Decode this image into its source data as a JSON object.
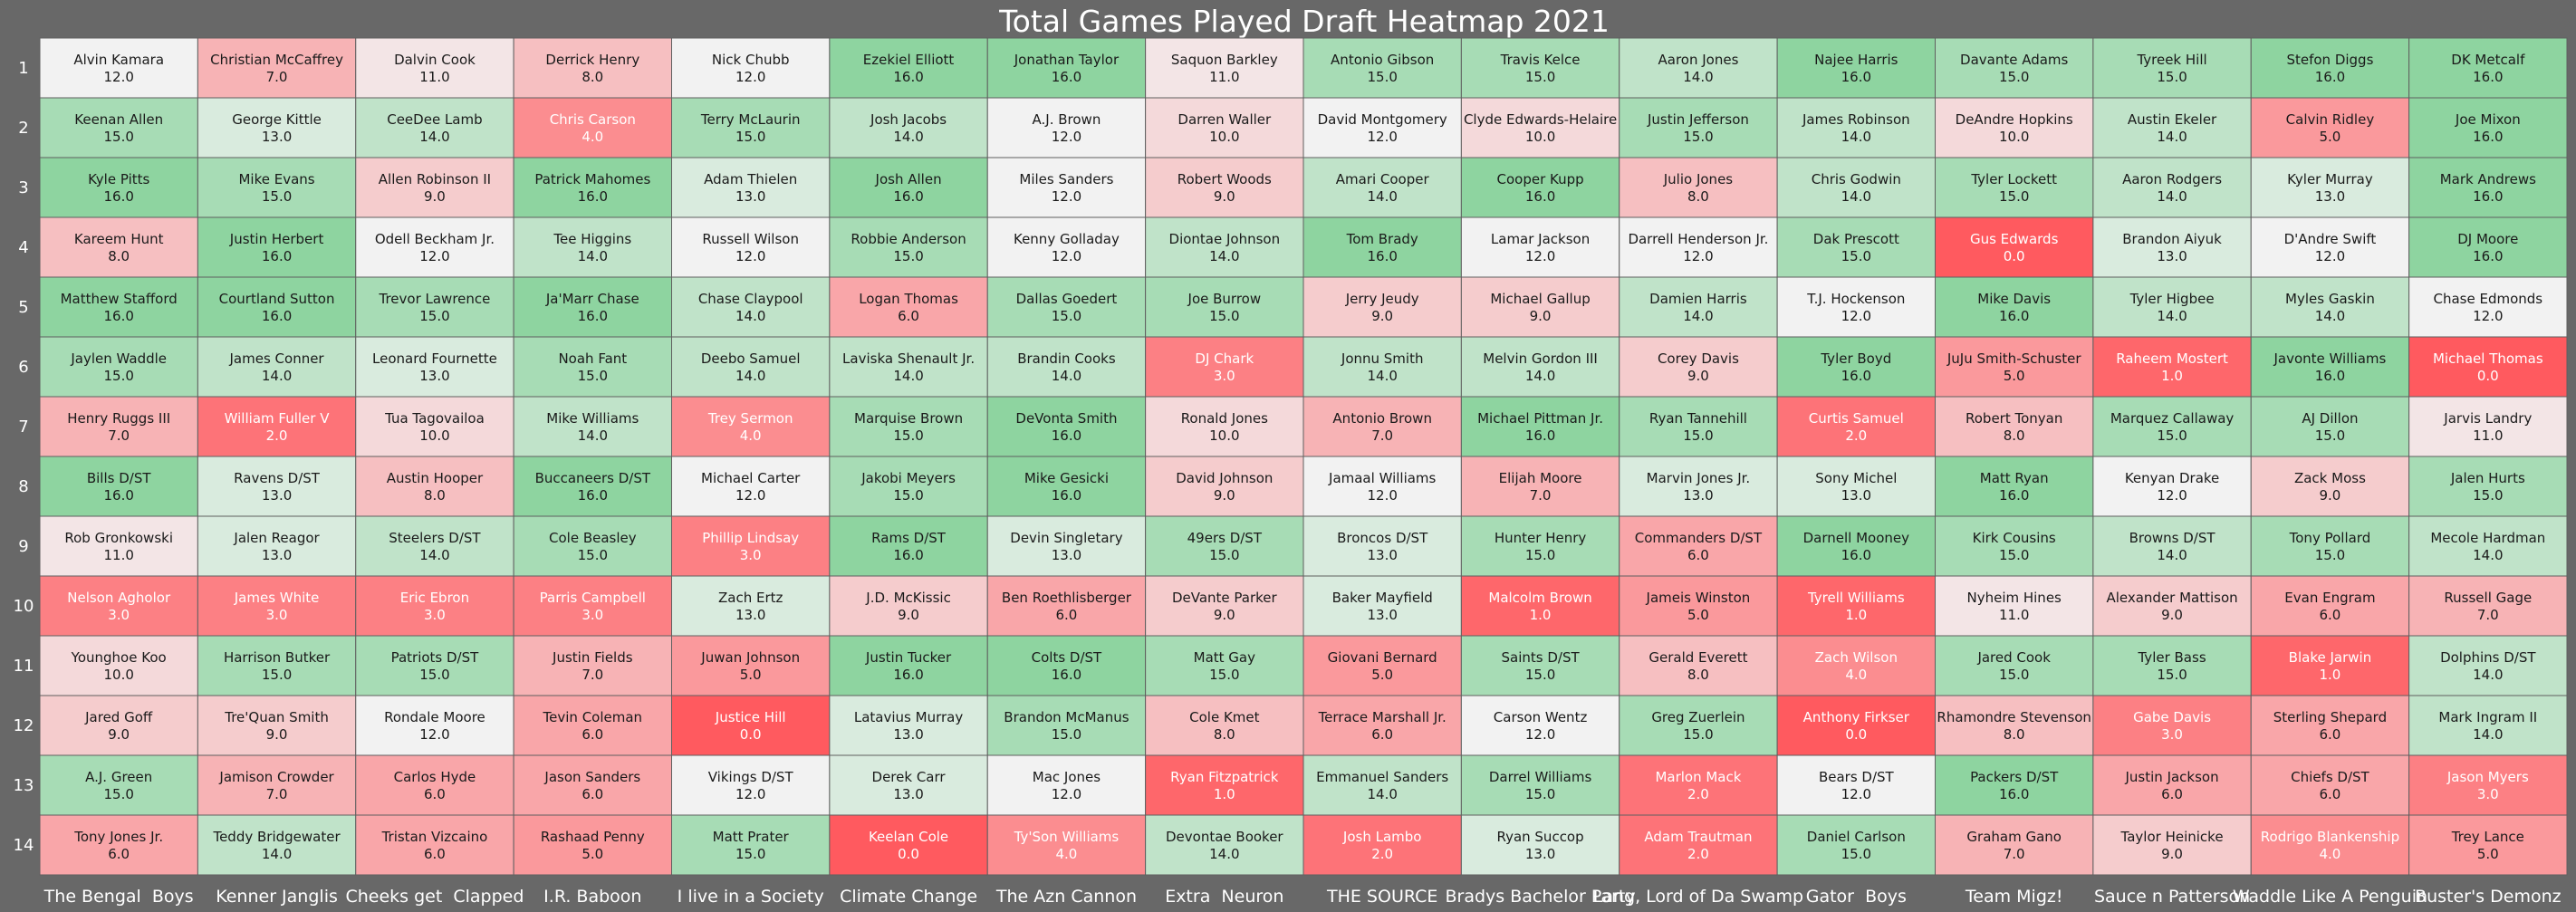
{
  "chart_data": {
    "type": "heatmap",
    "title": "Total Games Played Draft Heatmap 2021",
    "row_labels": [
      "1",
      "2",
      "3",
      "4",
      "5",
      "6",
      "7",
      "8",
      "9",
      "10",
      "11",
      "12",
      "13",
      "14"
    ],
    "columns": [
      "The Bengal  Boys",
      "Kenner Janglis",
      "Cheeks get  Clapped",
      "I.R. Baboon",
      "I live in a Society",
      "Climate Change",
      "The Azn Cannon",
      "Extra  Neuron",
      "THE SOURCE",
      "Bradys Bachelor Party",
      "Lang, Lord of Da Swamp",
      "Gator  Boys",
      "Team Migz!",
      "Sauce n Patterson",
      "Waddle Like A Penguin",
      "Buster's Demonz"
    ],
    "value_range": [
      0,
      16
    ],
    "colors": {
      "low": "#ff5a5f",
      "mid": "#f2f2f2",
      "high": "#8ed4a0",
      "background": "#686868",
      "grid": "#5f5f5f",
      "text_dark": "#1a1a1a",
      "text_light": "#ffffff",
      "title": "#ffffff"
    },
    "cells": [
      [
        {
          "name": "Alvin Kamara",
          "value": "12.0"
        },
        {
          "name": "Christian McCaffrey",
          "value": "7.0"
        },
        {
          "name": "Dalvin Cook",
          "value": "11.0"
        },
        {
          "name": "Derrick Henry",
          "value": "8.0"
        },
        {
          "name": "Nick Chubb",
          "value": "12.0"
        },
        {
          "name": "Ezekiel Elliott",
          "value": "16.0"
        },
        {
          "name": "Jonathan Taylor",
          "value": "16.0"
        },
        {
          "name": "Saquon Barkley",
          "value": "11.0"
        },
        {
          "name": "Antonio Gibson",
          "value": "15.0"
        },
        {
          "name": "Travis Kelce",
          "value": "15.0"
        },
        {
          "name": "Aaron Jones",
          "value": "14.0"
        },
        {
          "name": "Najee Harris",
          "value": "16.0"
        },
        {
          "name": "Davante Adams",
          "value": "15.0"
        },
        {
          "name": "Tyreek Hill",
          "value": "15.0"
        },
        {
          "name": "Stefon Diggs",
          "value": "16.0"
        },
        {
          "name": "DK Metcalf",
          "value": "16.0"
        }
      ],
      [
        {
          "name": "Keenan Allen",
          "value": "15.0"
        },
        {
          "name": "George Kittle",
          "value": "13.0"
        },
        {
          "name": "CeeDee Lamb",
          "value": "14.0"
        },
        {
          "name": "Chris Carson",
          "value": "4.0"
        },
        {
          "name": "Terry McLaurin",
          "value": "15.0"
        },
        {
          "name": "Josh Jacobs",
          "value": "14.0"
        },
        {
          "name": "A.J. Brown",
          "value": "12.0"
        },
        {
          "name": "Darren Waller",
          "value": "10.0"
        },
        {
          "name": "David Montgomery",
          "value": "12.0"
        },
        {
          "name": "Clyde Edwards-Helaire",
          "value": "10.0"
        },
        {
          "name": "Justin Jefferson",
          "value": "15.0"
        },
        {
          "name": "James Robinson",
          "value": "14.0"
        },
        {
          "name": "DeAndre Hopkins",
          "value": "10.0"
        },
        {
          "name": "Austin Ekeler",
          "value": "14.0"
        },
        {
          "name": "Calvin Ridley",
          "value": "5.0"
        },
        {
          "name": "Joe Mixon",
          "value": "16.0"
        }
      ],
      [
        {
          "name": "Kyle Pitts",
          "value": "16.0"
        },
        {
          "name": "Mike Evans",
          "value": "15.0"
        },
        {
          "name": "Allen Robinson II",
          "value": "9.0"
        },
        {
          "name": "Patrick Mahomes",
          "value": "16.0"
        },
        {
          "name": "Adam Thielen",
          "value": "13.0"
        },
        {
          "name": "Josh Allen",
          "value": "16.0"
        },
        {
          "name": "Miles Sanders",
          "value": "12.0"
        },
        {
          "name": "Robert Woods",
          "value": "9.0"
        },
        {
          "name": "Amari Cooper",
          "value": "14.0"
        },
        {
          "name": "Cooper Kupp",
          "value": "16.0"
        },
        {
          "name": "Julio Jones",
          "value": "8.0"
        },
        {
          "name": "Chris Godwin",
          "value": "14.0"
        },
        {
          "name": "Tyler Lockett",
          "value": "15.0"
        },
        {
          "name": "Aaron Rodgers",
          "value": "14.0"
        },
        {
          "name": "Kyler Murray",
          "value": "13.0"
        },
        {
          "name": "Mark Andrews",
          "value": "16.0"
        }
      ],
      [
        {
          "name": "Kareem Hunt",
          "value": "8.0"
        },
        {
          "name": "Justin Herbert",
          "value": "16.0"
        },
        {
          "name": "Odell Beckham Jr.",
          "value": "12.0"
        },
        {
          "name": "Tee Higgins",
          "value": "14.0"
        },
        {
          "name": "Russell Wilson",
          "value": "12.0"
        },
        {
          "name": "Robbie Anderson",
          "value": "15.0"
        },
        {
          "name": "Kenny Golladay",
          "value": "12.0"
        },
        {
          "name": "Diontae Johnson",
          "value": "14.0"
        },
        {
          "name": "Tom Brady",
          "value": "16.0"
        },
        {
          "name": "Lamar Jackson",
          "value": "12.0"
        },
        {
          "name": "Darrell Henderson Jr.",
          "value": "12.0"
        },
        {
          "name": "Dak Prescott",
          "value": "15.0"
        },
        {
          "name": "Gus Edwards",
          "value": "0.0"
        },
        {
          "name": "Brandon Aiyuk",
          "value": "13.0"
        },
        {
          "name": "D'Andre Swift",
          "value": "12.0"
        },
        {
          "name": "DJ Moore",
          "value": "16.0"
        }
      ],
      [
        {
          "name": "Matthew Stafford",
          "value": "16.0"
        },
        {
          "name": "Courtland Sutton",
          "value": "16.0"
        },
        {
          "name": "Trevor Lawrence",
          "value": "15.0"
        },
        {
          "name": "Ja'Marr Chase",
          "value": "16.0"
        },
        {
          "name": "Chase Claypool",
          "value": "14.0"
        },
        {
          "name": "Logan Thomas",
          "value": "6.0"
        },
        {
          "name": "Dallas Goedert",
          "value": "15.0"
        },
        {
          "name": "Joe Burrow",
          "value": "15.0"
        },
        {
          "name": "Jerry Jeudy",
          "value": "9.0"
        },
        {
          "name": "Michael Gallup",
          "value": "9.0"
        },
        {
          "name": "Damien Harris",
          "value": "14.0"
        },
        {
          "name": "T.J. Hockenson",
          "value": "12.0"
        },
        {
          "name": "Mike Davis",
          "value": "16.0"
        },
        {
          "name": "Tyler Higbee",
          "value": "14.0"
        },
        {
          "name": "Myles Gaskin",
          "value": "14.0"
        },
        {
          "name": "Chase Edmonds",
          "value": "12.0"
        }
      ],
      [
        {
          "name": "Jaylen Waddle",
          "value": "15.0"
        },
        {
          "name": "James Conner",
          "value": "14.0"
        },
        {
          "name": "Leonard Fournette",
          "value": "13.0"
        },
        {
          "name": "Noah Fant",
          "value": "15.0"
        },
        {
          "name": "Deebo Samuel",
          "value": "14.0"
        },
        {
          "name": "Laviska Shenault Jr.",
          "value": "14.0"
        },
        {
          "name": "Brandin Cooks",
          "value": "14.0"
        },
        {
          "name": "DJ Chark",
          "value": "3.0"
        },
        {
          "name": "Jonnu Smith",
          "value": "14.0"
        },
        {
          "name": "Melvin Gordon III",
          "value": "14.0"
        },
        {
          "name": "Corey Davis",
          "value": "9.0"
        },
        {
          "name": "Tyler Boyd",
          "value": "16.0"
        },
        {
          "name": "JuJu Smith-Schuster",
          "value": "5.0"
        },
        {
          "name": "Raheem Mostert",
          "value": "1.0"
        },
        {
          "name": "Javonte Williams",
          "value": "16.0"
        },
        {
          "name": "Michael Thomas",
          "value": "0.0"
        }
      ],
      [
        {
          "name": "Henry Ruggs III",
          "value": "7.0"
        },
        {
          "name": "William Fuller V",
          "value": "2.0"
        },
        {
          "name": "Tua Tagovailoa",
          "value": "10.0"
        },
        {
          "name": "Mike Williams",
          "value": "14.0"
        },
        {
          "name": "Trey Sermon",
          "value": "4.0"
        },
        {
          "name": "Marquise Brown",
          "value": "15.0"
        },
        {
          "name": "DeVonta Smith",
          "value": "16.0"
        },
        {
          "name": "Ronald Jones",
          "value": "10.0"
        },
        {
          "name": "Antonio Brown",
          "value": "7.0"
        },
        {
          "name": "Michael Pittman Jr.",
          "value": "16.0"
        },
        {
          "name": "Ryan Tannehill",
          "value": "15.0"
        },
        {
          "name": "Curtis Samuel",
          "value": "2.0"
        },
        {
          "name": "Robert Tonyan",
          "value": "8.0"
        },
        {
          "name": "Marquez Callaway",
          "value": "15.0"
        },
        {
          "name": "AJ Dillon",
          "value": "15.0"
        },
        {
          "name": "Jarvis Landry",
          "value": "11.0"
        }
      ],
      [
        {
          "name": "Bills D/ST",
          "value": "16.0"
        },
        {
          "name": "Ravens D/ST",
          "value": "13.0"
        },
        {
          "name": "Austin Hooper",
          "value": "8.0"
        },
        {
          "name": "Buccaneers D/ST",
          "value": "16.0"
        },
        {
          "name": "Michael Carter",
          "value": "12.0"
        },
        {
          "name": "Jakobi Meyers",
          "value": "15.0"
        },
        {
          "name": "Mike Gesicki",
          "value": "16.0"
        },
        {
          "name": "David Johnson",
          "value": "9.0"
        },
        {
          "name": "Jamaal Williams",
          "value": "12.0"
        },
        {
          "name": "Elijah Moore",
          "value": "7.0"
        },
        {
          "name": "Marvin Jones Jr.",
          "value": "13.0"
        },
        {
          "name": "Sony Michel",
          "value": "13.0"
        },
        {
          "name": "Matt Ryan",
          "value": "16.0"
        },
        {
          "name": "Kenyan Drake",
          "value": "12.0"
        },
        {
          "name": "Zack Moss",
          "value": "9.0"
        },
        {
          "name": "Jalen Hurts",
          "value": "15.0"
        }
      ],
      [
        {
          "name": "Rob Gronkowski",
          "value": "11.0"
        },
        {
          "name": "Jalen Reagor",
          "value": "13.0"
        },
        {
          "name": "Steelers D/ST",
          "value": "14.0"
        },
        {
          "name": "Cole Beasley",
          "value": "15.0"
        },
        {
          "name": "Phillip Lindsay",
          "value": "3.0"
        },
        {
          "name": "Rams D/ST",
          "value": "16.0"
        },
        {
          "name": "Devin Singletary",
          "value": "13.0"
        },
        {
          "name": "49ers D/ST",
          "value": "15.0"
        },
        {
          "name": "Broncos D/ST",
          "value": "13.0"
        },
        {
          "name": "Hunter Henry",
          "value": "15.0"
        },
        {
          "name": "Commanders D/ST",
          "value": "6.0"
        },
        {
          "name": "Darnell Mooney",
          "value": "16.0"
        },
        {
          "name": "Kirk Cousins",
          "value": "15.0"
        },
        {
          "name": "Browns D/ST",
          "value": "14.0"
        },
        {
          "name": "Tony Pollard",
          "value": "15.0"
        },
        {
          "name": "Mecole Hardman",
          "value": "14.0"
        }
      ],
      [
        {
          "name": "Nelson Agholor",
          "value": "3.0"
        },
        {
          "name": "James White",
          "value": "3.0"
        },
        {
          "name": "Eric Ebron",
          "value": "3.0"
        },
        {
          "name": "Parris Campbell",
          "value": "3.0"
        },
        {
          "name": "Zach Ertz",
          "value": "13.0"
        },
        {
          "name": "J.D. McKissic",
          "value": "9.0"
        },
        {
          "name": "Ben Roethlisberger",
          "value": "6.0"
        },
        {
          "name": "DeVante Parker",
          "value": "9.0"
        },
        {
          "name": "Baker Mayfield",
          "value": "13.0"
        },
        {
          "name": "Malcolm Brown",
          "value": "1.0"
        },
        {
          "name": "Jameis Winston",
          "value": "5.0"
        },
        {
          "name": "Tyrell Williams",
          "value": "1.0"
        },
        {
          "name": "Nyheim Hines",
          "value": "11.0"
        },
        {
          "name": "Alexander Mattison",
          "value": "9.0"
        },
        {
          "name": "Evan Engram",
          "value": "6.0"
        },
        {
          "name": "Russell Gage",
          "value": "7.0"
        }
      ],
      [
        {
          "name": "Younghoe Koo",
          "value": "10.0"
        },
        {
          "name": "Harrison Butker",
          "value": "15.0"
        },
        {
          "name": "Patriots D/ST",
          "value": "15.0"
        },
        {
          "name": "Justin Fields",
          "value": "7.0"
        },
        {
          "name": "Juwan Johnson",
          "value": "5.0"
        },
        {
          "name": "Justin Tucker",
          "value": "16.0"
        },
        {
          "name": "Colts D/ST",
          "value": "16.0"
        },
        {
          "name": "Matt Gay",
          "value": "15.0"
        },
        {
          "name": "Giovani Bernard",
          "value": "5.0"
        },
        {
          "name": "Saints D/ST",
          "value": "15.0"
        },
        {
          "name": "Gerald Everett",
          "value": "8.0"
        },
        {
          "name": "Zach Wilson",
          "value": "4.0"
        },
        {
          "name": "Jared Cook",
          "value": "15.0"
        },
        {
          "name": "Tyler Bass",
          "value": "15.0"
        },
        {
          "name": "Blake Jarwin",
          "value": "1.0"
        },
        {
          "name": "Dolphins D/ST",
          "value": "14.0"
        }
      ],
      [
        {
          "name": "Jared Goff",
          "value": "9.0"
        },
        {
          "name": "Tre'Quan Smith",
          "value": "9.0"
        },
        {
          "name": "Rondale Moore",
          "value": "12.0"
        },
        {
          "name": "Tevin Coleman",
          "value": "6.0"
        },
        {
          "name": "Justice Hill",
          "value": "0.0"
        },
        {
          "name": "Latavius Murray",
          "value": "13.0"
        },
        {
          "name": "Brandon McManus",
          "value": "15.0"
        },
        {
          "name": "Cole Kmet",
          "value": "8.0"
        },
        {
          "name": "Terrace Marshall Jr.",
          "value": "6.0"
        },
        {
          "name": "Carson Wentz",
          "value": "12.0"
        },
        {
          "name": "Greg Zuerlein",
          "value": "15.0"
        },
        {
          "name": "Anthony Firkser",
          "value": "0.0"
        },
        {
          "name": "Rhamondre Stevenson",
          "value": "8.0"
        },
        {
          "name": "Gabe Davis",
          "value": "3.0"
        },
        {
          "name": "Sterling Shepard",
          "value": "6.0"
        },
        {
          "name": "Mark Ingram II",
          "value": "14.0"
        }
      ],
      [
        {
          "name": "A.J. Green",
          "value": "15.0"
        },
        {
          "name": "Jamison Crowder",
          "value": "7.0"
        },
        {
          "name": "Carlos Hyde",
          "value": "6.0"
        },
        {
          "name": "Jason Sanders",
          "value": "6.0"
        },
        {
          "name": "Vikings D/ST",
          "value": "12.0"
        },
        {
          "name": "Derek Carr",
          "value": "13.0"
        },
        {
          "name": "Mac Jones",
          "value": "12.0"
        },
        {
          "name": "Ryan Fitzpatrick",
          "value": "1.0"
        },
        {
          "name": "Emmanuel Sanders",
          "value": "14.0"
        },
        {
          "name": "Darrel Williams",
          "value": "15.0"
        },
        {
          "name": "Marlon Mack",
          "value": "2.0"
        },
        {
          "name": "Bears D/ST",
          "value": "12.0"
        },
        {
          "name": "Packers D/ST",
          "value": "16.0"
        },
        {
          "name": "Justin Jackson",
          "value": "6.0"
        },
        {
          "name": "Chiefs D/ST",
          "value": "6.0"
        },
        {
          "name": "Jason Myers",
          "value": "3.0"
        }
      ],
      [
        {
          "name": "Tony Jones Jr.",
          "value": "6.0"
        },
        {
          "name": "Teddy Bridgewater",
          "value": "14.0"
        },
        {
          "name": "Tristan Vizcaino",
          "value": "6.0"
        },
        {
          "name": "Rashaad Penny",
          "value": "5.0"
        },
        {
          "name": "Matt Prater",
          "value": "15.0"
        },
        {
          "name": "Keelan Cole",
          "value": "0.0"
        },
        {
          "name": "Ty'Son Williams",
          "value": "4.0"
        },
        {
          "name": "Devontae Booker",
          "value": "14.0"
        },
        {
          "name": "Josh Lambo",
          "value": "2.0"
        },
        {
          "name": "Ryan Succop",
          "value": "13.0"
        },
        {
          "name": "Adam Trautman",
          "value": "2.0"
        },
        {
          "name": "Daniel Carlson",
          "value": "15.0"
        },
        {
          "name": "Graham Gano",
          "value": "7.0"
        },
        {
          "name": "Taylor Heinicke",
          "value": "9.0"
        },
        {
          "name": "Rodrigo Blankenship",
          "value": "4.0"
        },
        {
          "name": "Trey Lance",
          "value": "5.0"
        }
      ]
    ]
  }
}
